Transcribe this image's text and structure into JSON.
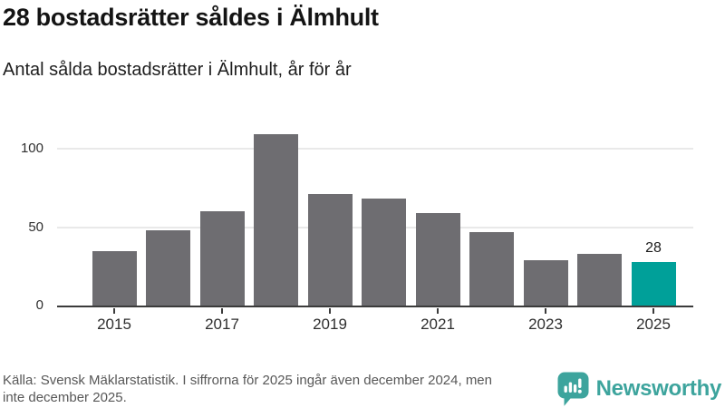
{
  "header": {
    "title": "28 bostadsrätter såldes i Älmhult",
    "subtitle": "Antal sålda bostadsrätter i Älmhult, år för år"
  },
  "chart_data": {
    "type": "bar",
    "title": "28 bostadsrätter såldes i Älmhult",
    "subtitle": "Antal sålda bostadsrätter i Älmhult, år för år",
    "categories": [
      "2015",
      "2016",
      "2017",
      "2018",
      "2019",
      "2020",
      "2021",
      "2022",
      "2023",
      "2024",
      "2025"
    ],
    "values": [
      35,
      48,
      60,
      109,
      71,
      68,
      59,
      47,
      29,
      33,
      28
    ],
    "highlight_index": 10,
    "highlight_label": "28",
    "yticks": [
      0,
      50,
      100
    ],
    "ylim": [
      0,
      114
    ],
    "xtick_labels": [
      "2015",
      "2017",
      "2019",
      "2021",
      "2023",
      "2025"
    ],
    "grid": "horizontal",
    "legend": "none",
    "bar_color": "#6e6d71",
    "highlight_color": "#00a099",
    "axis_color": "#3b3b3b",
    "gridline_color": "#e9e9e9"
  },
  "footer": {
    "source_lines": [
      "Källa: Svensk Mäklarstatistik. I siffrorna för 2025 ingår även december 2024, men",
      "inte december 2025."
    ],
    "brand": "Newsworthy",
    "brand_color": "#3da49d"
  }
}
